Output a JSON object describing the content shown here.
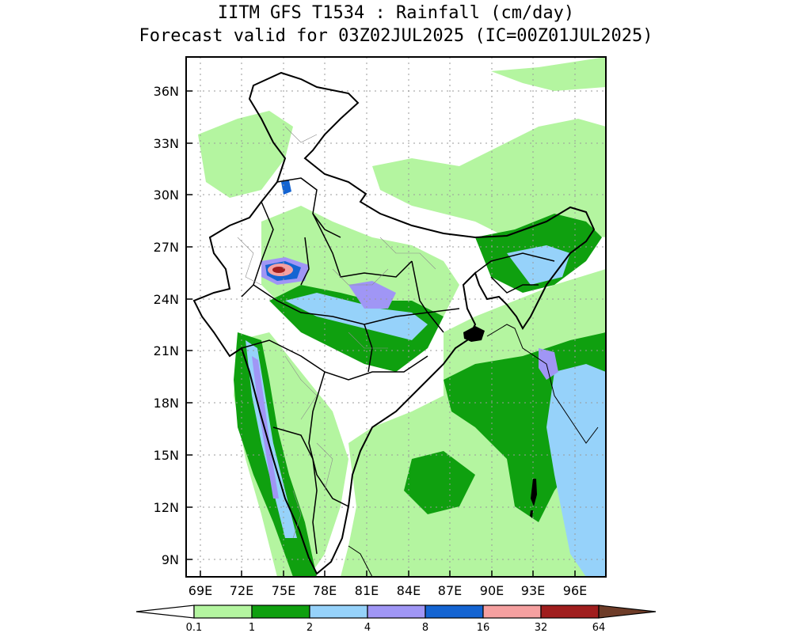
{
  "title": {
    "line1": "IITM GFS T1534 : Rainfall (cm/day)",
    "line2": "Forecast valid for 03Z02JUL2025 (IC=00Z01JUL2025)"
  },
  "axes": {
    "lat_labels": [
      "36N",
      "33N",
      "30N",
      "27N",
      "24N",
      "21N",
      "18N",
      "15N",
      "12N",
      "9N"
    ],
    "lon_labels": [
      "69E",
      "72E",
      "75E",
      "78E",
      "81E",
      "84E",
      "87E",
      "90E",
      "93E",
      "96E"
    ]
  },
  "colorbar": {
    "labels": [
      "0.1",
      "1",
      "2",
      "4",
      "8",
      "16",
      "32",
      "64"
    ],
    "colors": [
      "#b4f5a0",
      "#0fa00f",
      "#96d2fa",
      "#a096f5",
      "#1464d2",
      "#f5a0a0",
      "#a01e1e",
      "#6e3c28"
    ]
  },
  "palette": {
    "light_green": "#b4f5a0",
    "green": "#0fa00f",
    "light_blue": "#96d2fa",
    "lavender": "#a096f5",
    "blue": "#1464d2",
    "pink": "#f5a0a0",
    "red": "#a01e1e"
  }
}
